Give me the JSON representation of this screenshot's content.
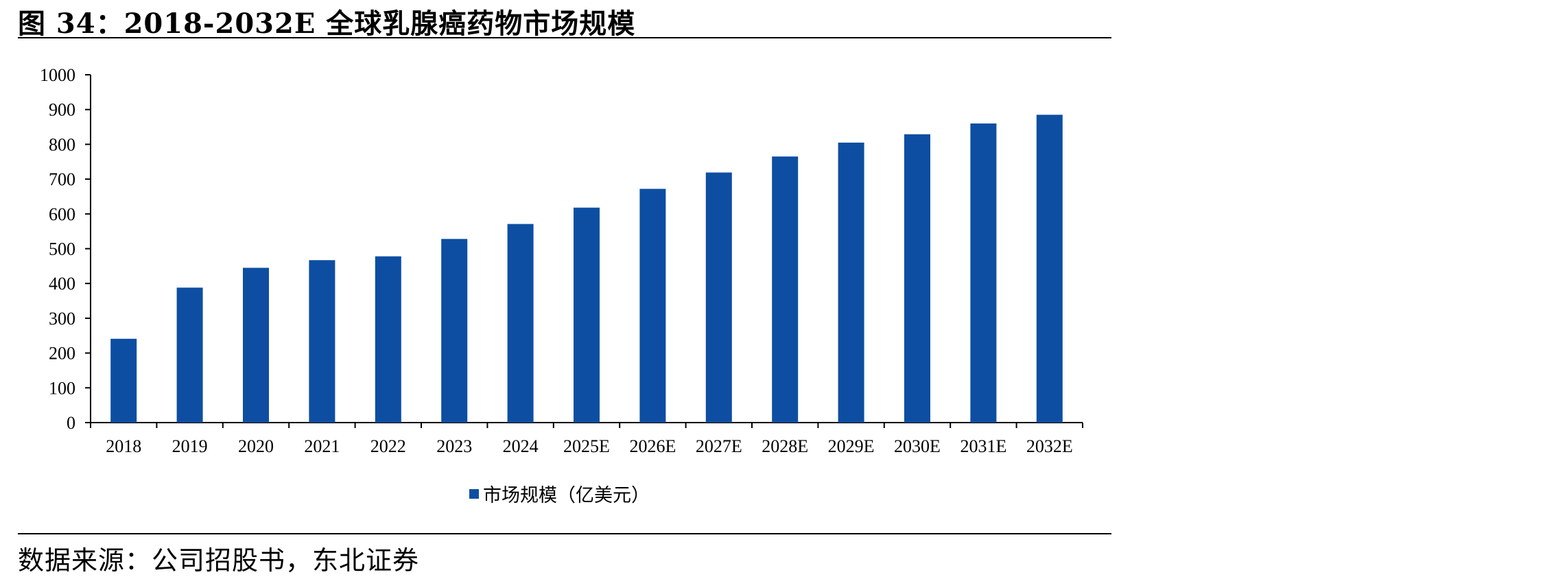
{
  "header": {
    "title": "图 34：2018-2032E 全球乳腺癌药物市场规模"
  },
  "footer": {
    "source": "数据来源：公司招股书，东北证券"
  },
  "colors": {
    "bar": "#0D4EA2",
    "axis": "#000000"
  },
  "chart_data": {
    "type": "bar",
    "title": "",
    "xlabel": "",
    "ylabel": "",
    "categories": [
      "2018",
      "2019",
      "2020",
      "2021",
      "2022",
      "2023",
      "2024",
      "2025E",
      "2026E",
      "2027E",
      "2028E",
      "2029E",
      "2030E",
      "2031E",
      "2032E"
    ],
    "series": [
      {
        "name": "市场规模（亿美元）",
        "values": [
          241,
          388,
          445,
          467,
          478,
          528,
          571,
          618,
          672,
          719,
          765,
          805,
          829,
          860,
          885
        ]
      }
    ],
    "ylim": [
      0,
      1000
    ],
    "yticks": [
      0,
      100,
      200,
      300,
      400,
      500,
      600,
      700,
      800,
      900,
      1000
    ],
    "grid": false,
    "legend": "bottom-center"
  }
}
